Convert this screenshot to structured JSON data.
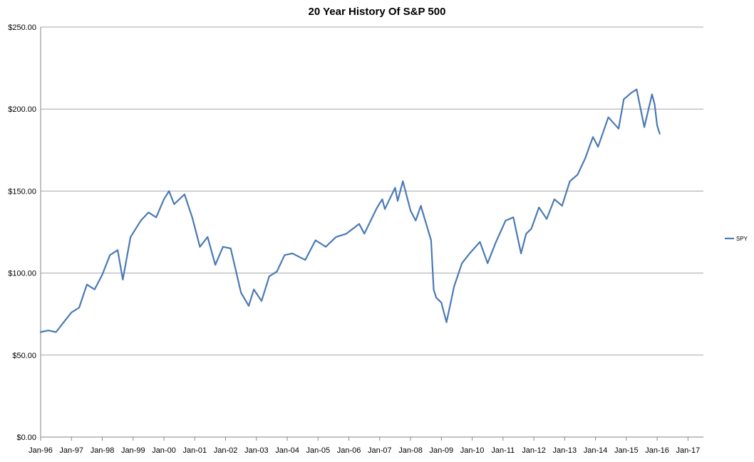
{
  "chart_data": {
    "type": "line",
    "title": "20 Year History Of S&P 500",
    "xlabel": "",
    "ylabel": "",
    "ylim": [
      0,
      250
    ],
    "y_ticks": [
      0,
      50,
      100,
      150,
      200,
      250
    ],
    "y_tick_labels": [
      "$0.00",
      "$50.00",
      "$100.00",
      "$150.00",
      "$200.00",
      "$250.00"
    ],
    "x_range": [
      "1996-01",
      "2017-07"
    ],
    "x_tick_labels": [
      "Jan-96",
      "Jan-97",
      "Jan-98",
      "Jan-99",
      "Jan-00",
      "Jan-01",
      "Jan-02",
      "Jan-03",
      "Jan-04",
      "Jan-05",
      "Jan-06",
      "Jan-07",
      "Jan-08",
      "Jan-09",
      "Jan-10",
      "Jan-11",
      "Jan-12",
      "Jan-13",
      "Jan-14",
      "Jan-15",
      "Jan-16",
      "Jan-17"
    ],
    "grid": "horizontal",
    "legend_position": "right",
    "series": [
      {
        "name": "SPY",
        "color": "#4a7ab5",
        "x": [
          "1996-01",
          "1996-04",
          "1996-07",
          "1996-10",
          "1997-01",
          "1997-04",
          "1997-07",
          "1997-10",
          "1998-01",
          "1998-04",
          "1998-07",
          "1998-09",
          "1998-12",
          "1999-04",
          "1999-07",
          "1999-10",
          "2000-01",
          "2000-03",
          "2000-05",
          "2000-09",
          "2000-12",
          "2001-03",
          "2001-06",
          "2001-09",
          "2001-12",
          "2002-03",
          "2002-07",
          "2002-10",
          "2002-12",
          "2003-03",
          "2003-06",
          "2003-09",
          "2003-12",
          "2004-03",
          "2004-08",
          "2004-12",
          "2005-04",
          "2005-08",
          "2005-12",
          "2006-05",
          "2006-07",
          "2006-12",
          "2007-02",
          "2007-03",
          "2007-07",
          "2007-08",
          "2007-10",
          "2008-01",
          "2008-03",
          "2008-05",
          "2008-09",
          "2008-10",
          "2008-11",
          "2009-01",
          "2009-03",
          "2009-06",
          "2009-09",
          "2009-12",
          "2010-04",
          "2010-07",
          "2010-10",
          "2011-02",
          "2011-05",
          "2011-08",
          "2011-10",
          "2011-12",
          "2012-03",
          "2012-06",
          "2012-09",
          "2012-12",
          "2013-03",
          "2013-06",
          "2013-09",
          "2013-12",
          "2014-02",
          "2014-06",
          "2014-10",
          "2014-12",
          "2015-03",
          "2015-05",
          "2015-08",
          "2015-11",
          "2015-12",
          "2016-01",
          "2016-02"
        ],
        "values": [
          64,
          65,
          64,
          70,
          76,
          79,
          93,
          90,
          99,
          111,
          114,
          96,
          122,
          132,
          137,
          134,
          145,
          150,
          142,
          148,
          134,
          116,
          122,
          105,
          116,
          115,
          88,
          80,
          90,
          83,
          98,
          101,
          111,
          112,
          108,
          120,
          116,
          122,
          124,
          130,
          124,
          140,
          145,
          139,
          152,
          144,
          156,
          138,
          132,
          141,
          120,
          90,
          85,
          82,
          70,
          92,
          106,
          112,
          119,
          106,
          118,
          132,
          134,
          112,
          124,
          127,
          140,
          133,
          145,
          141,
          156,
          160,
          170,
          183,
          177,
          195,
          188,
          206,
          210,
          212,
          189,
          209,
          203,
          190,
          185
        ]
      }
    ]
  }
}
